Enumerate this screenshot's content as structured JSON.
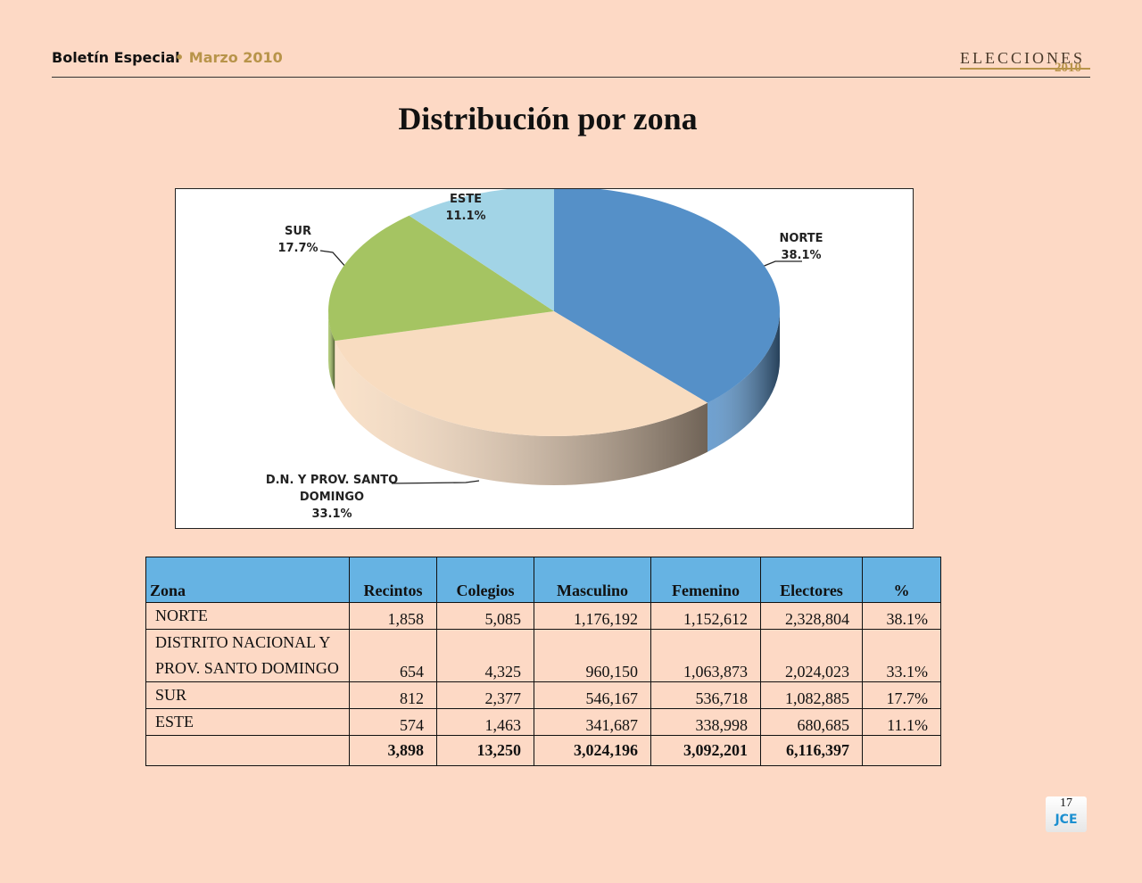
{
  "header": {
    "publication": "Boletín Especial",
    "date": "• Marzo 2010",
    "logo_title": "ELECCIONES",
    "logo_year": "2010"
  },
  "title": "Distribución por zona",
  "chart_data": {
    "type": "pie",
    "categories": [
      "NORTE",
      "D.N. Y PROV. SANTO DOMINGO",
      "SUR",
      "ESTE"
    ],
    "values": [
      38.1,
      33.1,
      17.7,
      11.1
    ],
    "value_labels": [
      "38.1%",
      "33.1%",
      "17.7%",
      "11.1%"
    ],
    "colors": [
      "#5590c8",
      "#f8dcc0",
      "#a5c462",
      "#a2d4e6"
    ]
  },
  "table": {
    "columns": [
      "Zona",
      "Recintos",
      "Colegios",
      "Masculino",
      "Femenino",
      "Electores",
      "%"
    ],
    "rows": [
      [
        "NORTE",
        "1,858",
        "5,085",
        "1,176,192",
        "1,152,612",
        "2,328,804",
        "38.1%"
      ],
      [
        "DISTRITO NACIONAL Y PROV. SANTO DOMINGO",
        "654",
        "4,325",
        "960,150",
        "1,063,873",
        "2,024,023",
        "33.1%"
      ],
      [
        "SUR",
        "812",
        "2,377",
        "546,167",
        "536,718",
        "1,082,885",
        "17.7%"
      ],
      [
        "ESTE",
        "574",
        "1,463",
        "341,687",
        "338,998",
        "680,685",
        "11.1%"
      ]
    ],
    "totals": [
      "3,898",
      "13,250",
      "3,024,196",
      "3,092,201",
      "6,116,397"
    ]
  },
  "footer": {
    "page_number": "17",
    "logo": "JCE"
  }
}
